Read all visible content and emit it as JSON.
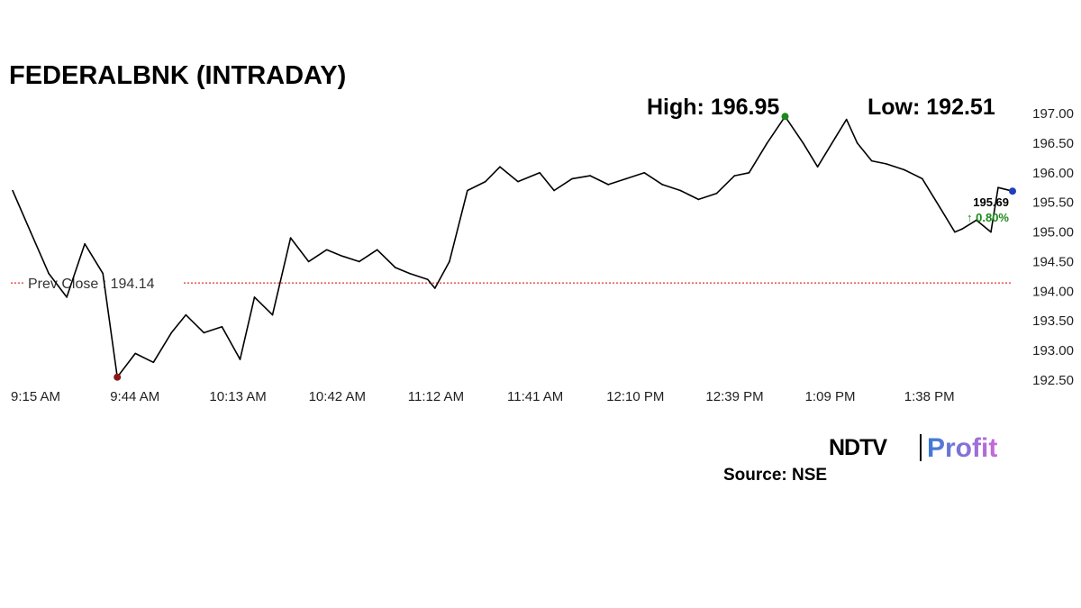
{
  "chart_data": {
    "type": "line",
    "title": "FEDERALBNK (INTRADAY)",
    "high_label": "High: 196.95",
    "low_label": "Low: 192.51",
    "prev_close_label": "Prev Close : 194.14",
    "prev_close": 194.14,
    "last_value": "195.69",
    "change_label": "↑ 0.80%",
    "source_label": "Source: NSE",
    "x_ticks": [
      "9:15 AM",
      "9:44 AM",
      "10:13 AM",
      "10:42 AM",
      "11:12 AM",
      "11:41 AM",
      "12:10 PM",
      "12:39 PM",
      "1:09 PM",
      "1:38 PM"
    ],
    "y_ticks": [
      "197.00",
      "196.50",
      "196.00",
      "195.50",
      "195.00",
      "194.50",
      "194.00",
      "193.50",
      "193.00",
      "192.50"
    ],
    "ylim": [
      192.5,
      197.0
    ],
    "x": [
      "9:15",
      "9:20",
      "9:25",
      "9:30",
      "9:35",
      "9:40",
      "9:44",
      "9:49",
      "9:54",
      "9:59",
      "10:03",
      "10:08",
      "10:13",
      "10:18",
      "10:22",
      "10:27",
      "10:32",
      "10:37",
      "10:42",
      "10:46",
      "10:51",
      "10:56",
      "11:01",
      "11:05",
      "11:10",
      "11:12",
      "11:16",
      "11:21",
      "11:26",
      "11:30",
      "11:35",
      "11:41",
      "11:45",
      "11:50",
      "11:55",
      "12:00",
      "12:05",
      "12:10",
      "12:15",
      "12:20",
      "12:25",
      "12:30",
      "12:35",
      "12:39",
      "12:44",
      "12:49",
      "12:54",
      "12:58",
      "13:03",
      "13:06",
      "13:09",
      "13:13",
      "13:17",
      "13:22",
      "13:27",
      "13:32",
      "13:36",
      "13:38",
      "13:42",
      "13:46",
      "13:48",
      "13:52"
    ],
    "values": [
      195.7,
      195.0,
      194.3,
      193.9,
      194.8,
      194.3,
      192.55,
      192.95,
      192.8,
      193.3,
      193.6,
      193.3,
      193.4,
      192.85,
      193.9,
      193.6,
      194.9,
      194.5,
      194.7,
      194.6,
      194.5,
      194.7,
      194.4,
      194.3,
      194.2,
      194.05,
      194.5,
      195.7,
      195.85,
      196.1,
      195.85,
      196.0,
      195.7,
      195.9,
      195.95,
      195.8,
      195.9,
      196.0,
      195.8,
      195.7,
      195.55,
      195.65,
      195.95,
      196.0,
      196.5,
      196.95,
      196.5,
      196.1,
      196.6,
      196.9,
      196.5,
      196.2,
      196.15,
      196.05,
      195.9,
      195.4,
      195.0,
      195.05,
      195.2,
      195.0,
      195.75,
      195.69
    ],
    "colors": {
      "line": "#000000",
      "prev_close": "#d40000",
      "high_dot": "#1a8a1a",
      "low_dot": "#8b1a1a",
      "last_dot": "#1f3fbf",
      "change": "#1a8a1a",
      "profit_from": "#3a7bd5",
      "profit_to": "#c96ad8"
    }
  },
  "branding": {
    "ndtv": "NDTV",
    "profit": "Profit"
  }
}
